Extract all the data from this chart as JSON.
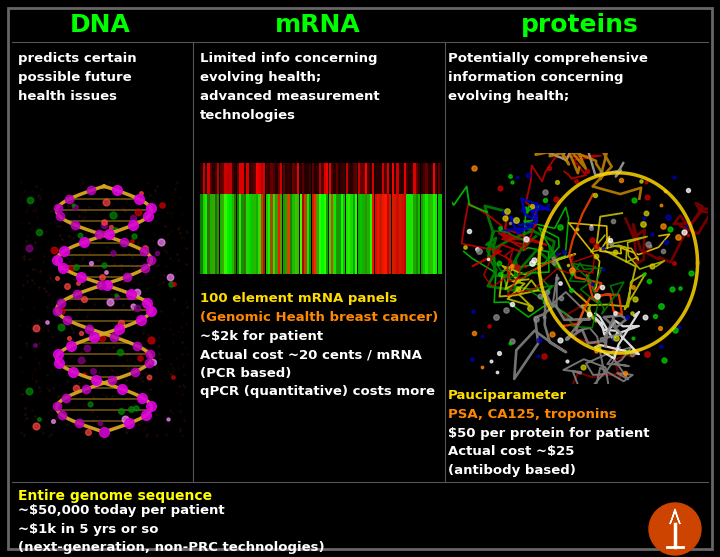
{
  "bg_color": "#000000",
  "border_color": "#666666",
  "title_dna": "DNA",
  "title_mrna": "mRNA",
  "title_proteins": "proteins",
  "title_color": "#00ff00",
  "white_color": "#ffffff",
  "yellow_color": "#ffff00",
  "orange_color": "#ff8c00",
  "dna_subtitle": "predicts certain\npossible future\nhealth issues",
  "mrna_subtitle": "Limited info concerning\nevolving health;\nadvanced measurement\ntechnologies",
  "proteins_subtitle": "Potentially comprehensive\ninformation concerning\nevolving health;",
  "mrna_panel_line1": "100 element mRNA panels",
  "mrna_panel_line1_color": "#ffdd00",
  "mrna_panel_line2": "(Genomic Health breast cancer)",
  "mrna_panel_line2_color": "#ff8800",
  "mrna_bullets": "~$2k for patient\nActual cost ~20 cents / mRNA\n(PCR based)\nqPCR (quantitative) costs more",
  "proteins_label": "Pauciparameter",
  "proteins_label_color": "#ffdd00",
  "proteins_sublabel": "PSA, CA125, troponins",
  "proteins_sublabel_color": "#ff8800",
  "proteins_bullets": "$50 per protein for patient\nActual cost ~$25\n(antibody based)",
  "bottom_title": "Entire genome sequence",
  "bottom_title_color": "#ffff00",
  "bottom_bullets": "~$50,000 today per patient\n~$1k in 5 yrs or so\n(next-generation, non-PRC technologies)",
  "divider_color": "#555555",
  "logo_color": "#cc4400"
}
